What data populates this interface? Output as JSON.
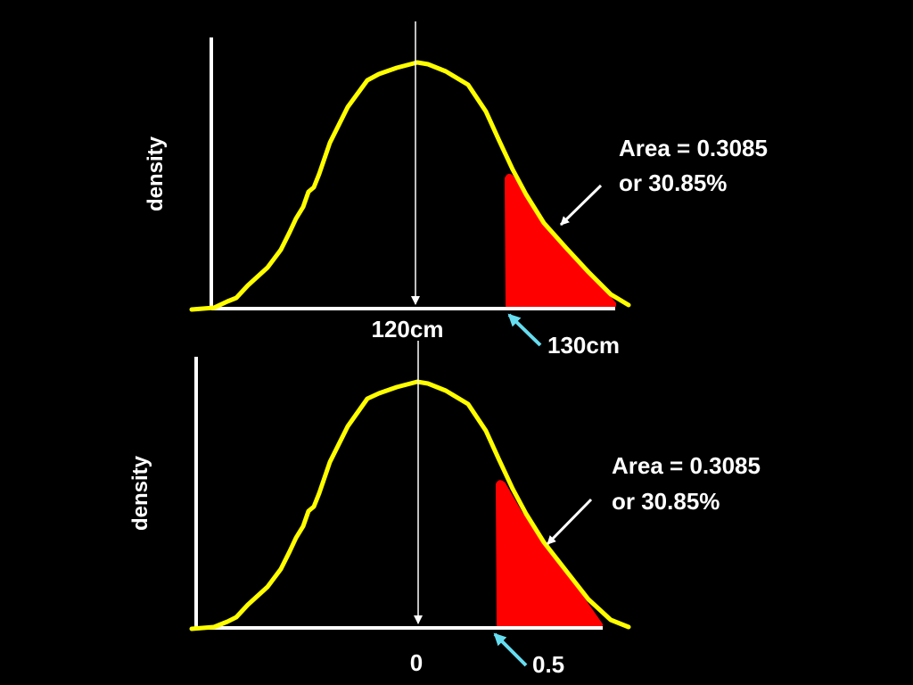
{
  "panels": [
    {
      "ylabel": "density",
      "center_label": "120cm",
      "cutoff_label": "130cm",
      "area_line1": "Area = 0.3085",
      "area_line2": "or 30.85%"
    },
    {
      "ylabel": "density",
      "center_label": "0",
      "cutoff_label": "0.5",
      "area_line1": "Area = 0.3085",
      "area_line2": "or 30.85%"
    }
  ],
  "colors": {
    "background": "#000000",
    "curve": "#ffff00",
    "shaded_area": "#ff0000",
    "axes": "#ffffff",
    "pointer_arrow": "#66ddf0",
    "text": "#ffffff"
  }
}
